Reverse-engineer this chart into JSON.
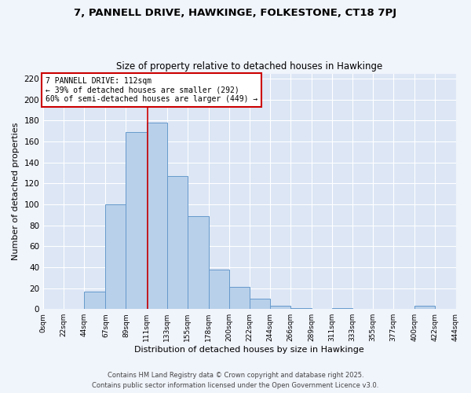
{
  "title1": "7, PANNELL DRIVE, HAWKINGE, FOLKESTONE, CT18 7PJ",
  "title2": "Size of property relative to detached houses in Hawkinge",
  "xlabel": "Distribution of detached houses by size in Hawkinge",
  "ylabel": "Number of detached properties",
  "bin_edges": [
    0,
    22,
    44,
    67,
    89,
    111,
    133,
    155,
    178,
    200,
    222,
    244,
    266,
    289,
    311,
    333,
    355,
    377,
    400,
    422,
    444
  ],
  "bin_counts": [
    0,
    0,
    17,
    100,
    169,
    178,
    127,
    89,
    38,
    21,
    10,
    3,
    1,
    0,
    1,
    0,
    0,
    0,
    3,
    0
  ],
  "bar_facecolor": "#b8d0ea",
  "bar_edgecolor": "#6699cc",
  "vline_x": 112,
  "vline_color": "#cc0000",
  "annotation_title": "7 PANNELL DRIVE: 112sqm",
  "annotation_line1": "← 39% of detached houses are smaller (292)",
  "annotation_line2": "60% of semi-detached houses are larger (449) →",
  "annotation_box_color": "#cc0000",
  "ylim": [
    0,
    225
  ],
  "yticks": [
    0,
    20,
    40,
    60,
    80,
    100,
    120,
    140,
    160,
    180,
    200,
    220
  ],
  "xtick_labels": [
    "0sqm",
    "22sqm",
    "44sqm",
    "67sqm",
    "89sqm",
    "111sqm",
    "133sqm",
    "155sqm",
    "178sqm",
    "200sqm",
    "222sqm",
    "244sqm",
    "266sqm",
    "289sqm",
    "311sqm",
    "333sqm",
    "355sqm",
    "377sqm",
    "400sqm",
    "422sqm",
    "444sqm"
  ],
  "footer1": "Contains HM Land Registry data © Crown copyright and database right 2025.",
  "footer2": "Contains public sector information licensed under the Open Government Licence v3.0.",
  "fig_facecolor": "#f0f4fb",
  "ax_facecolor": "#dce6f5"
}
